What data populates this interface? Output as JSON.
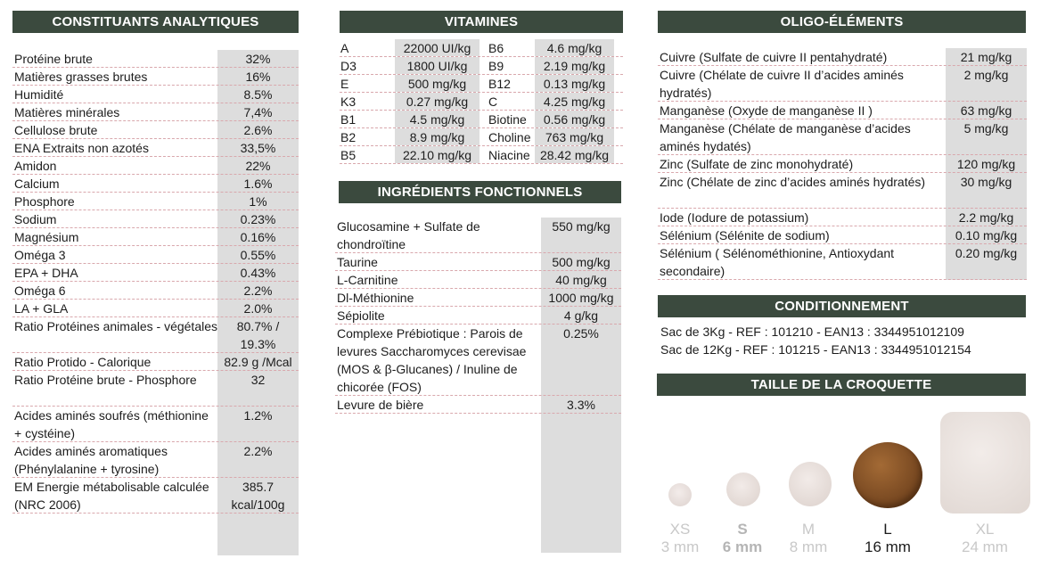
{
  "analytic": {
    "title": "CONSTITUANTS ANALYTIQUES",
    "rows": [
      {
        "label": "Protéine brute",
        "value": "32%"
      },
      {
        "label": "Matières grasses brutes",
        "value": "16%"
      },
      {
        "label": "Humidité",
        "value": "8.5%"
      },
      {
        "label": "Matières minérales",
        "value": "7,4%"
      },
      {
        "label": "Cellulose brute",
        "value": "2.6%"
      },
      {
        "label": "ENA Extraits non azotés",
        "value": "33,5%"
      },
      {
        "label": "Amidon",
        "value": "22%"
      },
      {
        "label": "Calcium",
        "value": "1.6%"
      },
      {
        "label": "Phosphore",
        "value": "1%"
      },
      {
        "label": "Sodium",
        "value": "0.23%"
      },
      {
        "label": "Magnésium",
        "value": "0.16%"
      },
      {
        "label": "Oméga 3",
        "value": "0.55%"
      },
      {
        "label": "EPA + DHA",
        "value": "0.43%"
      },
      {
        "label": "Oméga 6",
        "value": "2.2%"
      },
      {
        "label": "LA + GLA",
        "value": "2.0%"
      },
      {
        "label": "Ratio Protéines animales - végétales",
        "value": "80.7% / 19.3%"
      },
      {
        "label": "Ratio Protido - Calorique",
        "value": "82.9 g /Mcal"
      },
      {
        "label": "Ratio Protéine brute - Phosphore",
        "value": "32"
      },
      {
        "label": "Acides aminés soufrés (méthionine + cystéine)",
        "value": "1.2%"
      },
      {
        "label": "Acides aminés aromatiques (Phénylalanine + tyrosine)",
        "value": "2.2%"
      },
      {
        "label": "EM Energie métabolisable calculée (NRC 2006)",
        "value": "385.7 kcal/100g"
      }
    ]
  },
  "vitamins": {
    "title": "VITAMINES",
    "rows": [
      {
        "k1": "A",
        "v1": "22000 UI/kg",
        "k2": "B6",
        "v2": "4.6 mg/kg"
      },
      {
        "k1": "D3",
        "v1": "1800 UI/kg",
        "k2": "B9",
        "v2": "2.19 mg/kg"
      },
      {
        "k1": "E",
        "v1": "500 mg/kg",
        "k2": "B12",
        "v2": "0.13 mg/kg"
      },
      {
        "k1": "K3",
        "v1": "0.27 mg/kg",
        "k2": "C",
        "v2": "4.25 mg/kg"
      },
      {
        "k1": "B1",
        "v1": "4.5 mg/kg",
        "k2": "Biotine",
        "v2": "0.56 mg/kg"
      },
      {
        "k1": "B2",
        "v1": "8.9 mg/kg",
        "k2": "Choline",
        "v2": "763 mg/kg"
      },
      {
        "k1": "B5",
        "v1": "22.10 mg/kg",
        "k2": "Niacine",
        "v2": "28.42 mg/kg"
      }
    ]
  },
  "functional": {
    "title": "INGRÉDIENTS FONCTIONNELS",
    "rows": [
      {
        "label": "Glucosamine + Sulfate de chondroïtine",
        "value": "550 mg/kg"
      },
      {
        "label": "Taurine",
        "value": "500 mg/kg"
      },
      {
        "label": "L-Carnitine",
        "value": "40 mg/kg"
      },
      {
        "label": "Dl-Méthionine",
        "value": "1000 mg/kg"
      },
      {
        "label": "Sépiolite",
        "value": "4 g/kg"
      },
      {
        "label": "Complexe Prébiotique : Parois de levures Saccharomyces cerevisae (MOS & β-Glucanes) / Inuline de chicorée (FOS)",
        "value": "0.25%"
      },
      {
        "label": "Levure de bière",
        "value": "3.3%"
      }
    ]
  },
  "oligo": {
    "title": "OLIGO-ÉLÉMENTS",
    "rows": [
      {
        "label": "Cuivre (Sulfate de cuivre II pentahydraté)",
        "value": "21 mg/kg"
      },
      {
        "label": "Cuivre (Chélate de cuivre II d’acides aminés hydratés)",
        "value": "2 mg/kg"
      },
      {
        "label": "Manganèse (Oxyde de manganèse II )",
        "value": "63 mg/kg"
      },
      {
        "label": "Manganèse (Chélate de manganèse d’acides aminés hydatés)",
        "value": "5 mg/kg"
      },
      {
        "label": "Zinc (Sulfate de zinc monohydraté)",
        "value": "120 mg/kg"
      },
      {
        "label": "Zinc (Chélate de zinc d’acides aminés hydratés)",
        "value": "30 mg/kg"
      },
      {
        "label": "Iode (Iodure de potassium)",
        "value": "2.2 mg/kg"
      },
      {
        "label": "Sélénium (Sélénite de sodium)",
        "value": "0.10 mg/kg"
      },
      {
        "label": "Sélénium ( Sélénométhionine, Antioxydant secondaire)",
        "value": "0.20 mg/kg"
      }
    ]
  },
  "packaging": {
    "title": "CONDITIONNEMENT",
    "lines": [
      "Sac de 3Kg - REF : 101210 - EAN13 : 3344951012109",
      "Sac de 12Kg - REF : 101215 - EAN13 : 3344951012154"
    ]
  },
  "kibble": {
    "title": "TAILLE DE LA CROQUETTE",
    "sizes": [
      {
        "code": "XS",
        "mm": "3 mm"
      },
      {
        "code": "S",
        "mm": "6 mm"
      },
      {
        "code": "M",
        "mm": "8 mm"
      },
      {
        "code": "L",
        "mm": "16 mm"
      },
      {
        "code": "XL",
        "mm": "24 mm"
      }
    ],
    "selected": "L"
  }
}
